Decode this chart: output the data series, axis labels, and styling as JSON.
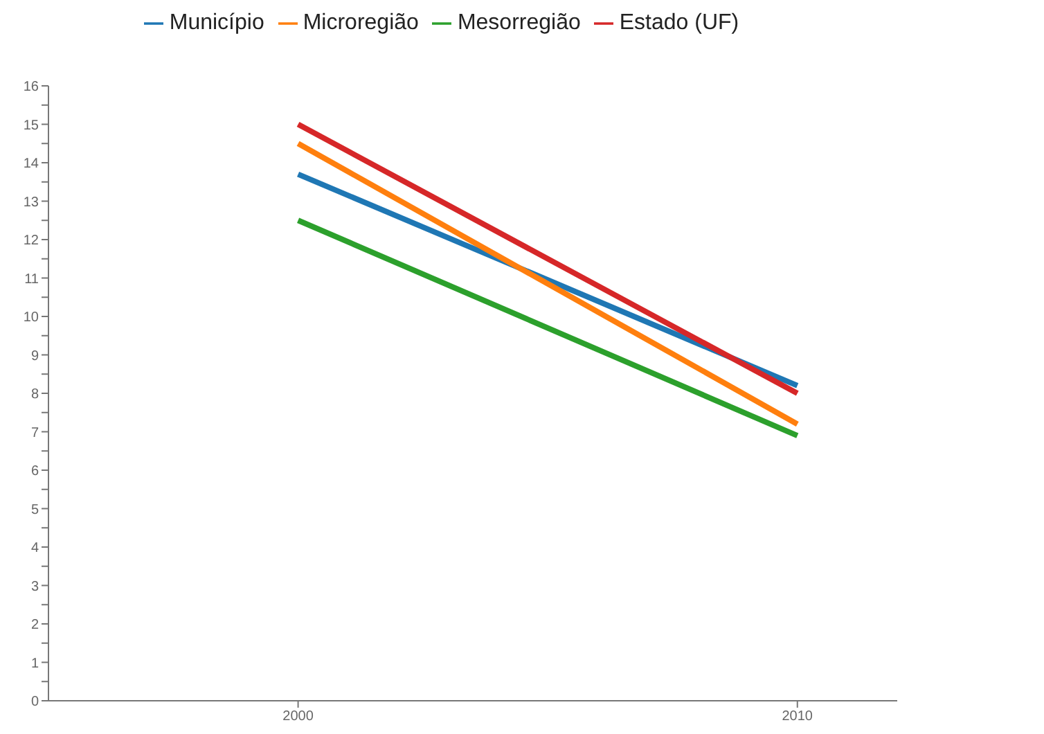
{
  "chart_data": {
    "type": "line",
    "x": [
      2000,
      2010
    ],
    "xlim": [
      1995,
      2012
    ],
    "xticks": [
      2000,
      2010
    ],
    "ylim": [
      0,
      16
    ],
    "yticks": [
      0,
      {
        "value": 0.5,
        "label": null
      },
      1,
      {
        "value": 1.5,
        "label": null
      },
      2,
      {
        "value": 2.5,
        "label": null
      },
      3,
      {
        "value": 3.5,
        "label": null
      },
      4,
      {
        "value": 4.5,
        "label": null
      },
      5,
      {
        "value": 5.5,
        "label": null
      },
      6,
      {
        "value": 6.5,
        "label": null
      },
      7,
      {
        "value": 7.5,
        "label": null
      },
      8,
      {
        "value": 8.5,
        "label": null
      },
      9,
      {
        "value": 9.5,
        "label": null
      },
      10,
      {
        "value": 10.5,
        "label": null
      },
      11,
      {
        "value": 11.5,
        "label": null
      },
      12,
      {
        "value": 12.5,
        "label": null
      },
      13,
      {
        "value": 13.5,
        "label": null
      },
      14,
      {
        "value": 14.5,
        "label": null
      },
      15,
      {
        "value": 15.5,
        "label": null
      },
      16
    ],
    "legend": "top",
    "marker": "none",
    "line_style": "solid",
    "series": [
      {
        "name": "Município",
        "color": "#1f77b4",
        "values": [
          13.7,
          8.2
        ]
      },
      {
        "name": "Microregião",
        "color": "#ff7f0e",
        "values": [
          14.5,
          7.2
        ]
      },
      {
        "name": "Mesorregião",
        "color": "#2ca02c",
        "values": [
          12.5,
          6.9
        ]
      },
      {
        "name": "Estado (UF)",
        "color": "#d62728",
        "values": [
          15.0,
          8.0
        ]
      }
    ]
  }
}
